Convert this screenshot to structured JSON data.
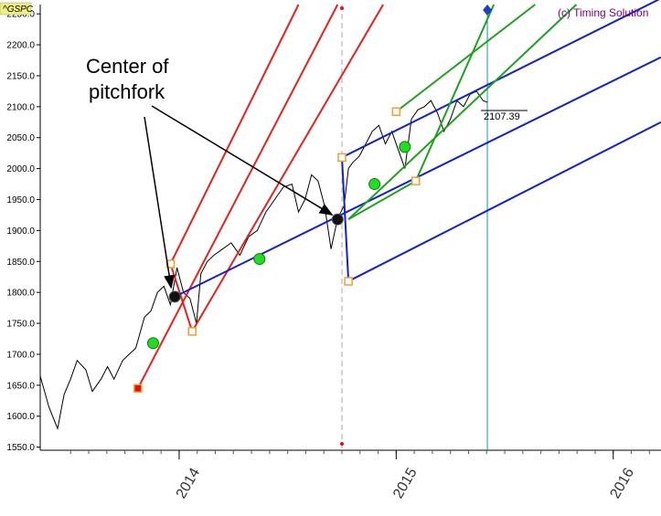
{
  "symbol": "^GSPC",
  "copyright": "(c) Timing Solution",
  "annotation": {
    "line1": "Center of",
    "line2": "pitchfork"
  },
  "current_value_label": "2107.39",
  "colors": {
    "price": "#000000",
    "red_fork": "#e8201e",
    "blue_fork": "#1020d0",
    "green_fork": "#20a020",
    "cursor": "#1a90b0",
    "marker_fill": "#22dd22",
    "pivot_fill": "#f0a030",
    "pivot_start_fill": "#e01010",
    "symbol_bg": "#f0f080",
    "copyright": "#800080"
  },
  "chart_data": {
    "type": "line",
    "title": "",
    "xlabel": "",
    "ylabel": "",
    "ylim": [
      1545,
      2265
    ],
    "xlim": [
      2013.36,
      2016.22
    ],
    "grid": false,
    "y_ticks": [
      "1550.0",
      "1600.0",
      "1650.0",
      "1700.0",
      "1750.0",
      "1800.0",
      "1850.0",
      "1900.0",
      "1950.0",
      "2000.0",
      "2050.0",
      "2100.0",
      "2150.0",
      "2200.0",
      "2250.0"
    ],
    "y_tick_values": [
      1550,
      1600,
      1650,
      1700,
      1750,
      1800,
      1850,
      1900,
      1950,
      2000,
      2050,
      2100,
      2150,
      2200,
      2250
    ],
    "x_ticks": [
      "2014",
      "2015",
      "2016"
    ],
    "x_tick_values": [
      2014.0,
      2015.0,
      2016.0
    ],
    "series": [
      {
        "values_x": [
          2013.36,
          2013.4,
          2013.44,
          2013.47,
          2013.5,
          2013.53,
          2013.57,
          2013.6,
          2013.64,
          2013.67,
          2013.7,
          2013.74,
          2013.77,
          2013.8,
          2013.84,
          2013.87,
          2013.9,
          2013.93,
          2013.96,
          2013.99,
          2014.02,
          2014.05,
          2014.08,
          2014.1,
          2014.13,
          2014.16,
          2014.2,
          2014.24,
          2014.28,
          2014.32,
          2014.36,
          2014.4,
          2014.44,
          2014.48,
          2014.52,
          2014.55,
          2014.58,
          2014.61,
          2014.64,
          2014.67,
          2014.7,
          2014.73,
          2014.76,
          2014.78,
          2014.8,
          2014.83,
          2014.86,
          2014.89,
          2014.92,
          2014.95,
          2014.98,
          2015.01,
          2015.04,
          2015.07,
          2015.1,
          2015.13,
          2015.16,
          2015.19,
          2015.22,
          2015.25,
          2015.28,
          2015.31,
          2015.34,
          2015.37,
          2015.4,
          2015.42
        ],
        "values_y": [
          1665,
          1615,
          1580,
          1635,
          1660,
          1690,
          1675,
          1640,
          1660,
          1680,
          1660,
          1690,
          1700,
          1710,
          1760,
          1770,
          1800,
          1810,
          1780,
          1840,
          1800,
          1790,
          1750,
          1830,
          1850,
          1860,
          1870,
          1880,
          1860,
          1890,
          1900,
          1930,
          1950,
          1970,
          1975,
          1930,
          1950,
          1990,
          1980,
          1940,
          1870,
          1920,
          1940,
          2000,
          2010,
          2020,
          2040,
          2060,
          2070,
          2040,
          2060,
          2030,
          2000,
          2080,
          2095,
          2100,
          2110,
          2090,
          2060,
          2080,
          2110,
          2100,
          2120,
          2125,
          2110,
          2107
        ]
      }
    ],
    "annotations": [
      "Center of pitchfork"
    ],
    "red_pitchfork": {
      "pivots": [
        {
          "x": 2013.81,
          "y": 1645
        },
        {
          "x": 2013.96,
          "y": 1846
        },
        {
          "x": 2014.06,
          "y": 1737
        }
      ],
      "median_end": {
        "x": 2014.73,
        "y": 2265
      },
      "upper_end": {
        "x": 2014.55,
        "y": 2265
      },
      "lower_end": {
        "x": 2014.94,
        "y": 2265
      }
    },
    "blue_pitchfork": {
      "pivots": [
        {
          "x": 2013.98,
          "y": 1793
        },
        {
          "x": 2014.75,
          "y": 2018
        },
        {
          "x": 2014.78,
          "y": 1818
        }
      ],
      "median_end": {
        "x": 2016.22,
        "y": 2180
      },
      "upper_end": {
        "x": 2016.22,
        "y": 2275
      },
      "lower_end": {
        "x": 2016.22,
        "y": 2075
      }
    },
    "green_pitchfork": {
      "pivots": [
        {
          "x": 2015.0,
          "y": 2092
        },
        {
          "x": 2015.09,
          "y": 1980
        },
        {
          "x": 2014.78,
          "y": 1918
        }
      ],
      "median_end": {
        "x": 2015.64,
        "y": 2265
      },
      "upper_end": {
        "x": 2015.45,
        "y": 2265
      },
      "lower_end": {
        "x": 2015.83,
        "y": 2265
      }
    },
    "green_markers": [
      {
        "x": 2013.88,
        "y": 1718
      },
      {
        "x": 2014.37,
        "y": 1854
      },
      {
        "x": 2014.9,
        "y": 1975
      },
      {
        "x": 2015.04,
        "y": 2035
      }
    ],
    "pivot_markers": [
      {
        "x": 2013.81,
        "y": 1645,
        "kind": "start"
      },
      {
        "x": 2013.96,
        "y": 1846,
        "kind": "pivot"
      },
      {
        "x": 2014.06,
        "y": 1737,
        "kind": "pivot"
      },
      {
        "x": 2014.75,
        "y": 2018,
        "kind": "pivot"
      },
      {
        "x": 2014.78,
        "y": 1818,
        "kind": "pivot"
      },
      {
        "x": 2015.0,
        "y": 2092,
        "kind": "pivot"
      },
      {
        "x": 2015.09,
        "y": 1980,
        "kind": "pivot"
      }
    ],
    "center_markers": [
      {
        "x": 2013.98,
        "y": 1793
      },
      {
        "x": 2014.73,
        "y": 1918
      }
    ],
    "vertical_lines": [
      {
        "x": 2014.75,
        "style": "dashed"
      },
      {
        "x": 2015.42,
        "style": "solid"
      }
    ],
    "current_value": 2107.39
  }
}
